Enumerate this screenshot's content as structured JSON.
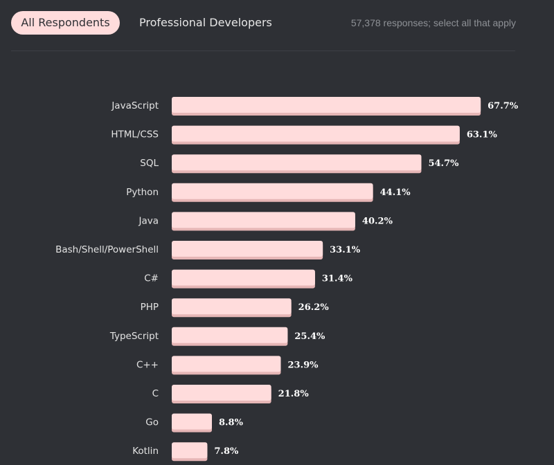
{
  "tabs": [
    {
      "label": "All Respondents",
      "active": true
    },
    {
      "label": "Professional Developers",
      "active": false
    }
  ],
  "responses_note": "57,378 responses; select all that apply",
  "colors": {
    "background": "#2e3035",
    "bar": "#ffdcdc",
    "bar_shadow": "#e6b6b6",
    "label": "#e4e4e4",
    "value": "#ffffff",
    "muted": "#8e9196"
  },
  "chart_data": {
    "type": "bar",
    "orientation": "horizontal",
    "categories": [
      "JavaScript",
      "HTML/CSS",
      "SQL",
      "Python",
      "Java",
      "Bash/Shell/PowerShell",
      "C#",
      "PHP",
      "TypeScript",
      "C++",
      "C",
      "Go",
      "Kotlin"
    ],
    "values": [
      67.7,
      63.1,
      54.7,
      44.1,
      40.2,
      33.1,
      31.4,
      26.2,
      25.4,
      23.9,
      21.8,
      8.8,
      7.8
    ],
    "value_labels": [
      "67.7%",
      "63.1%",
      "54.7%",
      "44.1%",
      "40.2%",
      "33.1%",
      "31.4%",
      "26.2%",
      "25.4%",
      "23.9%",
      "21.8%",
      "8.8%",
      "7.8%"
    ],
    "xlim": [
      0,
      100
    ],
    "grid": false,
    "legend": "none"
  }
}
